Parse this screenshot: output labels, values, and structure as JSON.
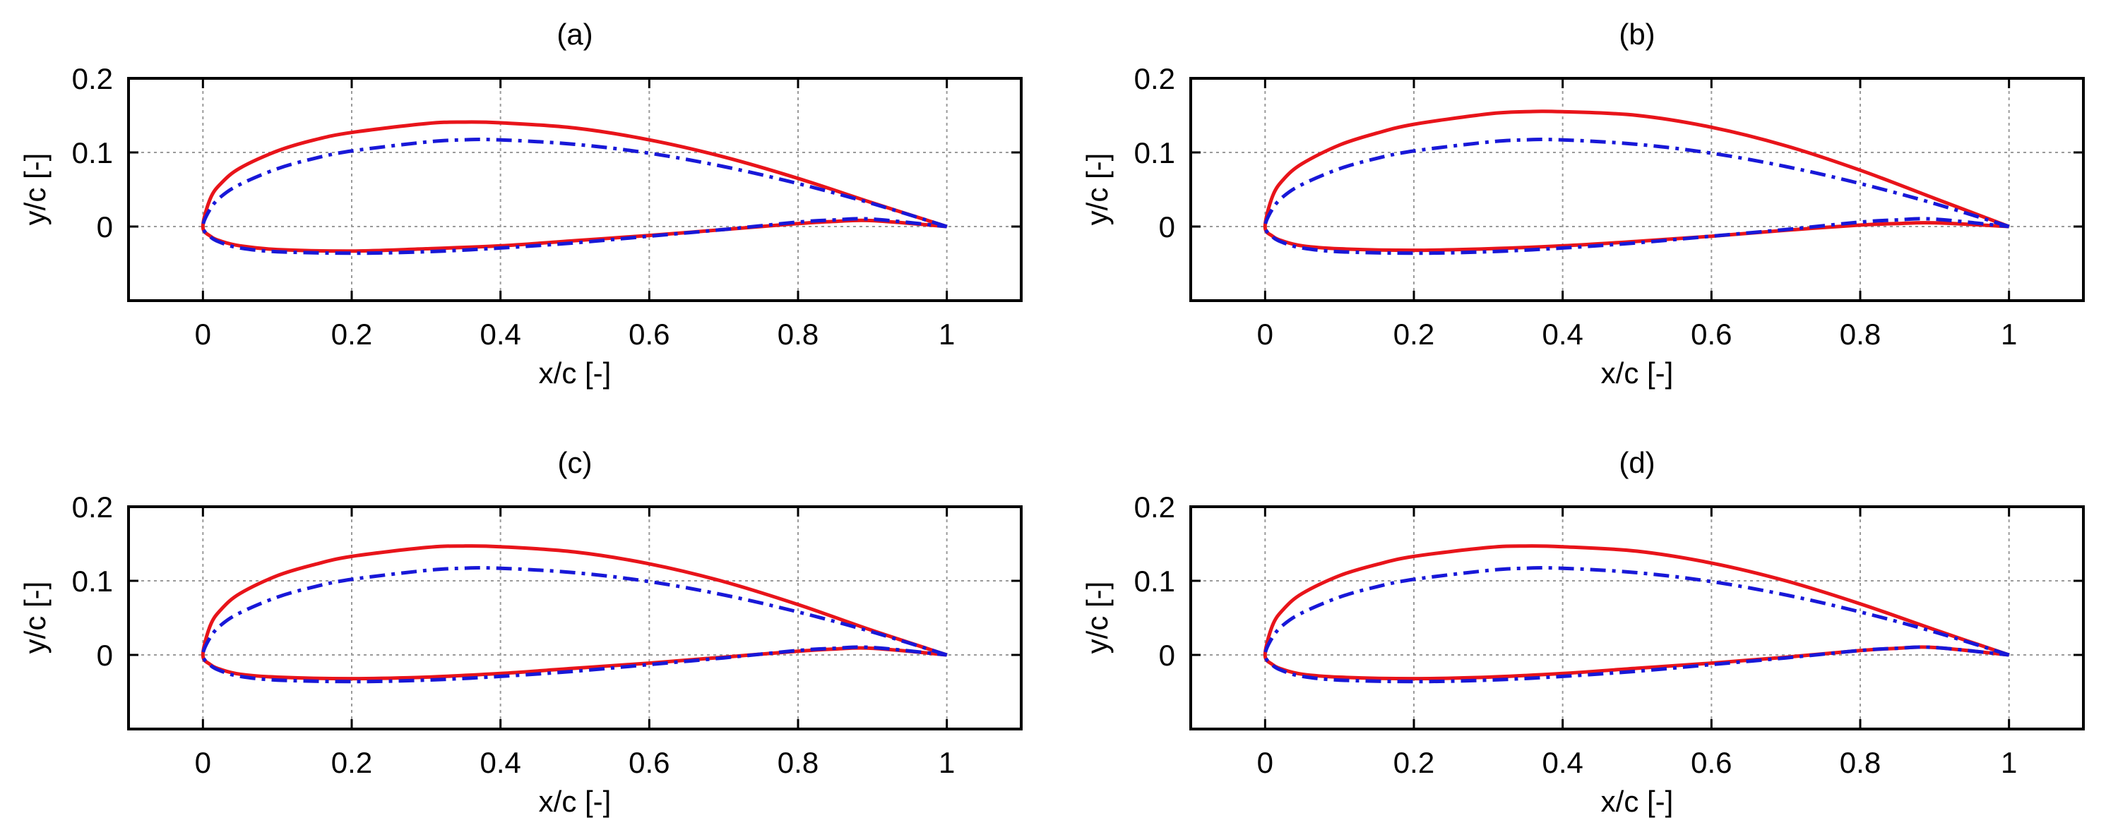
{
  "colors": {
    "series_1": "#e8141a",
    "series_2": "#1818d8"
  },
  "chart_data": [
    {
      "type": "line",
      "title": "(a)",
      "xlabel": "x/c [-]",
      "ylabel": "y/c [-]",
      "xlim": [
        -0.1,
        1.1
      ],
      "ylim": [
        -0.1,
        0.2
      ],
      "xticks": [
        "0",
        "0.2",
        "0.4",
        "0.6",
        "0.8",
        "1"
      ],
      "yticks": [
        "0",
        "0.1",
        "0.2"
      ],
      "xtick_values": [
        0,
        0.2,
        0.4,
        0.6,
        0.8,
        1
      ],
      "ytick_values": [
        0,
        0.1,
        0.2
      ],
      "grid": true,
      "series": [
        {
          "style": "solid",
          "color": "#e8141a",
          "x": [
            1.0,
            0.9,
            0.8,
            0.7,
            0.6,
            0.5,
            0.4,
            0.35,
            0.3,
            0.2,
            0.15,
            0.1,
            0.05,
            0.025,
            0.01,
            0.0,
            0.01,
            0.025,
            0.05,
            0.1,
            0.2,
            0.3,
            0.4,
            0.5,
            0.6,
            0.7,
            0.8,
            0.85,
            0.9,
            1.0
          ],
          "y": [
            0.0,
            0.032,
            0.065,
            0.094,
            0.117,
            0.133,
            0.14,
            0.141,
            0.139,
            0.127,
            0.117,
            0.102,
            0.079,
            0.059,
            0.038,
            0.0,
            -0.013,
            -0.02,
            -0.026,
            -0.031,
            -0.033,
            -0.03,
            -0.026,
            -0.019,
            -0.012,
            -0.004,
            0.004,
            0.007,
            0.008,
            0.0
          ]
        },
        {
          "style": "dashdot",
          "color": "#1818d8",
          "x": [
            1.0,
            0.9,
            0.8,
            0.7,
            0.6,
            0.5,
            0.4,
            0.35,
            0.3,
            0.2,
            0.15,
            0.1,
            0.05,
            0.025,
            0.01,
            0.0,
            0.01,
            0.025,
            0.05,
            0.1,
            0.2,
            0.3,
            0.4,
            0.5,
            0.6,
            0.7,
            0.8,
            0.85,
            0.9,
            1.0
          ],
          "y": [
            0.0,
            0.031,
            0.058,
            0.081,
            0.099,
            0.111,
            0.117,
            0.117,
            0.114,
            0.102,
            0.092,
            0.078,
            0.057,
            0.041,
            0.024,
            0.0,
            -0.014,
            -0.022,
            -0.029,
            -0.034,
            -0.036,
            -0.034,
            -0.029,
            -0.022,
            -0.013,
            -0.004,
            0.006,
            0.009,
            0.01,
            0.0
          ]
        }
      ]
    },
    {
      "type": "line",
      "title": "(b)",
      "xlabel": "x/c [-]",
      "ylabel": "y/c [-]",
      "xlim": [
        -0.1,
        1.1
      ],
      "ylim": [
        -0.1,
        0.2
      ],
      "xticks": [
        "0",
        "0.2",
        "0.4",
        "0.6",
        "0.8",
        "1"
      ],
      "yticks": [
        "0",
        "0.1",
        "0.2"
      ],
      "xtick_values": [
        0,
        0.2,
        0.4,
        0.6,
        0.8,
        1
      ],
      "ytick_values": [
        0,
        0.1,
        0.2
      ],
      "grid": true,
      "series": [
        {
          "style": "solid",
          "color": "#e8141a",
          "x": [
            1.0,
            0.9,
            0.8,
            0.7,
            0.6,
            0.5,
            0.4,
            0.35,
            0.3,
            0.2,
            0.15,
            0.1,
            0.05,
            0.025,
            0.01,
            0.0,
            0.01,
            0.025,
            0.05,
            0.1,
            0.2,
            0.3,
            0.4,
            0.5,
            0.6,
            0.7,
            0.8,
            0.85,
            0.9,
            1.0
          ],
          "y": [
            0.0,
            0.038,
            0.076,
            0.109,
            0.134,
            0.15,
            0.155,
            0.155,
            0.152,
            0.138,
            0.126,
            0.11,
            0.085,
            0.064,
            0.041,
            0.0,
            -0.013,
            -0.02,
            -0.026,
            -0.03,
            -0.032,
            -0.03,
            -0.026,
            -0.02,
            -0.013,
            -0.005,
            0.002,
            0.004,
            0.005,
            0.0
          ]
        },
        {
          "style": "dashdot",
          "color": "#1818d8",
          "x": [
            1.0,
            0.9,
            0.8,
            0.7,
            0.6,
            0.5,
            0.4,
            0.35,
            0.3,
            0.2,
            0.15,
            0.1,
            0.05,
            0.025,
            0.01,
            0.0,
            0.01,
            0.025,
            0.05,
            0.1,
            0.2,
            0.3,
            0.4,
            0.5,
            0.6,
            0.7,
            0.8,
            0.85,
            0.9,
            1.0
          ],
          "y": [
            0.0,
            0.031,
            0.058,
            0.081,
            0.099,
            0.111,
            0.117,
            0.117,
            0.114,
            0.102,
            0.092,
            0.078,
            0.057,
            0.041,
            0.024,
            0.0,
            -0.014,
            -0.022,
            -0.029,
            -0.034,
            -0.036,
            -0.034,
            -0.029,
            -0.022,
            -0.013,
            -0.004,
            0.006,
            0.009,
            0.01,
            0.0
          ]
        }
      ]
    },
    {
      "type": "line",
      "title": "(c)",
      "xlabel": "x/c [-]",
      "ylabel": "y/c [-]",
      "xlim": [
        -0.1,
        1.1
      ],
      "ylim": [
        -0.1,
        0.2
      ],
      "xticks": [
        "0",
        "0.2",
        "0.4",
        "0.6",
        "0.8",
        "1"
      ],
      "yticks": [
        "0",
        "0.1",
        "0.2"
      ],
      "xtick_values": [
        0,
        0.2,
        0.4,
        0.6,
        0.8,
        1
      ],
      "ytick_values": [
        0,
        0.1,
        0.2
      ],
      "grid": true,
      "series": [
        {
          "style": "solid",
          "color": "#e8141a",
          "x": [
            1.0,
            0.9,
            0.8,
            0.7,
            0.6,
            0.5,
            0.4,
            0.35,
            0.3,
            0.2,
            0.15,
            0.1,
            0.05,
            0.025,
            0.01,
            0.0,
            0.01,
            0.025,
            0.05,
            0.1,
            0.2,
            0.3,
            0.4,
            0.5,
            0.6,
            0.7,
            0.8,
            0.85,
            0.9,
            1.0
          ],
          "y": [
            0.0,
            0.033,
            0.068,
            0.099,
            0.123,
            0.139,
            0.146,
            0.147,
            0.145,
            0.133,
            0.122,
            0.107,
            0.083,
            0.062,
            0.04,
            0.0,
            -0.013,
            -0.02,
            -0.026,
            -0.03,
            -0.032,
            -0.03,
            -0.025,
            -0.018,
            -0.011,
            -0.003,
            0.005,
            0.008,
            0.009,
            0.0
          ]
        },
        {
          "style": "dashdot",
          "color": "#1818d8",
          "x": [
            1.0,
            0.9,
            0.8,
            0.7,
            0.6,
            0.5,
            0.4,
            0.35,
            0.3,
            0.2,
            0.15,
            0.1,
            0.05,
            0.025,
            0.01,
            0.0,
            0.01,
            0.025,
            0.05,
            0.1,
            0.2,
            0.3,
            0.4,
            0.5,
            0.6,
            0.7,
            0.8,
            0.85,
            0.9,
            1.0
          ],
          "y": [
            0.0,
            0.031,
            0.058,
            0.081,
            0.099,
            0.111,
            0.117,
            0.117,
            0.114,
            0.102,
            0.092,
            0.078,
            0.057,
            0.041,
            0.024,
            0.0,
            -0.014,
            -0.022,
            -0.029,
            -0.034,
            -0.036,
            -0.034,
            -0.029,
            -0.022,
            -0.013,
            -0.004,
            0.006,
            0.009,
            0.01,
            0.0
          ]
        }
      ]
    },
    {
      "type": "line",
      "title": "(d)",
      "xlabel": "x/c [-]",
      "ylabel": "y/c [-]",
      "xlim": [
        -0.1,
        1.1
      ],
      "ylim": [
        -0.1,
        0.2
      ],
      "xticks": [
        "0",
        "0.2",
        "0.4",
        "0.6",
        "0.8",
        "1"
      ],
      "yticks": [
        "0",
        "0.1",
        "0.2"
      ],
      "xtick_values": [
        0,
        0.2,
        0.4,
        0.6,
        0.8,
        1
      ],
      "ytick_values": [
        0,
        0.1,
        0.2
      ],
      "grid": true,
      "series": [
        {
          "style": "solid",
          "color": "#e8141a",
          "x": [
            1.0,
            0.9,
            0.8,
            0.7,
            0.6,
            0.5,
            0.4,
            0.35,
            0.3,
            0.2,
            0.15,
            0.1,
            0.05,
            0.025,
            0.01,
            0.0,
            0.01,
            0.025,
            0.05,
            0.1,
            0.2,
            0.3,
            0.4,
            0.5,
            0.6,
            0.7,
            0.8,
            0.85,
            0.9,
            1.0
          ],
          "y": [
            0.0,
            0.034,
            0.069,
            0.1,
            0.124,
            0.14,
            0.146,
            0.147,
            0.145,
            0.133,
            0.122,
            0.107,
            0.083,
            0.062,
            0.04,
            0.0,
            -0.013,
            -0.02,
            -0.026,
            -0.03,
            -0.032,
            -0.03,
            -0.025,
            -0.018,
            -0.011,
            -0.003,
            0.006,
            0.009,
            0.01,
            0.0
          ]
        },
        {
          "style": "dashdot",
          "color": "#1818d8",
          "x": [
            1.0,
            0.9,
            0.8,
            0.7,
            0.6,
            0.5,
            0.4,
            0.35,
            0.3,
            0.2,
            0.15,
            0.1,
            0.05,
            0.025,
            0.01,
            0.0,
            0.01,
            0.025,
            0.05,
            0.1,
            0.2,
            0.3,
            0.4,
            0.5,
            0.6,
            0.7,
            0.8,
            0.85,
            0.9,
            1.0
          ],
          "y": [
            0.0,
            0.031,
            0.058,
            0.081,
            0.099,
            0.111,
            0.117,
            0.117,
            0.114,
            0.102,
            0.092,
            0.078,
            0.057,
            0.041,
            0.024,
            0.0,
            -0.014,
            -0.022,
            -0.029,
            -0.034,
            -0.036,
            -0.034,
            -0.029,
            -0.022,
            -0.013,
            -0.004,
            0.006,
            0.009,
            0.01,
            0.0
          ]
        }
      ]
    }
  ]
}
